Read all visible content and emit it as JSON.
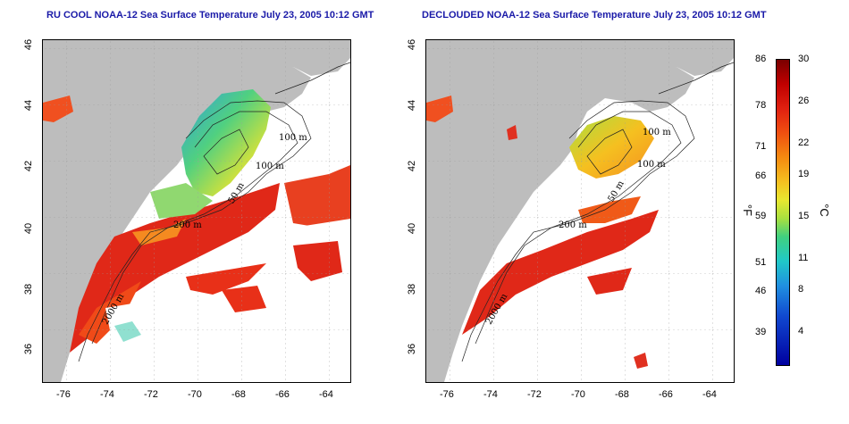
{
  "titles": {
    "left": "RU COOL NOAA-12 Sea Surface Temperature July 23, 2005 10:12 GMT",
    "right": "DECLOUDED NOAA-12 Sea Surface Temperature July 23, 2005 10:12 GMT"
  },
  "axes": {
    "x_ticks": [
      "-76",
      "-74",
      "-72",
      "-70",
      "-68",
      "-66",
      "-64"
    ],
    "y_ticks": [
      "36",
      "38",
      "40",
      "42",
      "44",
      "46"
    ]
  },
  "contour_labels": {
    "left": [
      "100 m",
      "100 m",
      "50 m",
      "200 m",
      "2000 m"
    ],
    "right": [
      "100 m",
      "100 m",
      "50 m",
      "200 m",
      "2000 m"
    ]
  },
  "colorbar": {
    "fahrenheit": [
      "86",
      "78",
      "71",
      "66",
      "59",
      "51",
      "46",
      "39"
    ],
    "celsius": [
      "30",
      "26",
      "22",
      "19",
      "15",
      "11",
      "8",
      "4"
    ],
    "unit_f": "°F",
    "unit_c": "°C"
  },
  "colors": {
    "title": "#1a1aa8",
    "land": "#bdbdbd",
    "cloud": "#ffffff",
    "warm": "#e02010",
    "cool": "#40d080"
  }
}
